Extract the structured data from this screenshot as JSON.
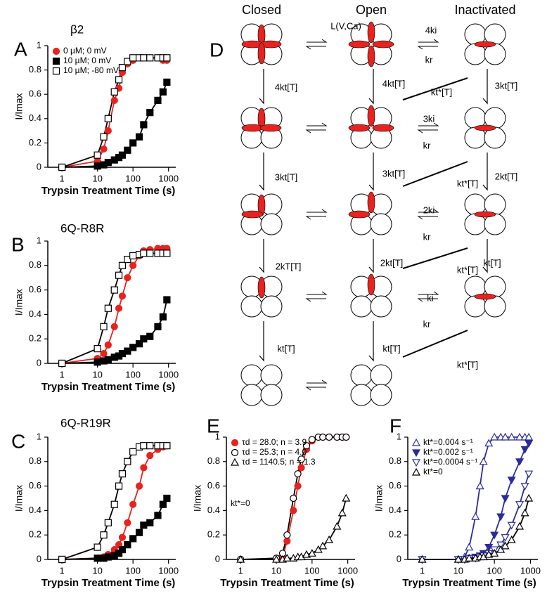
{
  "chart_data": [
    {
      "type": "line",
      "panel": "A",
      "title": "β2",
      "xlabel": "Trypsin Treatment Time (s)",
      "ylabel": "I/Imax",
      "x": [
        1,
        10,
        15,
        20,
        30,
        40,
        50,
        70,
        100,
        150,
        200,
        300,
        500,
        700,
        900
      ],
      "xlim": [
        0.4,
        1600
      ],
      "xticks": [
        1,
        10,
        100,
        1000
      ],
      "log_x": true,
      "ylim": [
        0,
        1
      ],
      "yticks": [
        0,
        0.2,
        0.4,
        0.6,
        0.8,
        1
      ],
      "legend": "upper left",
      "series": [
        {
          "name": "0 µM; 0 mV",
          "color": "#e8231f",
          "marker": "circle",
          "filled": true,
          "values": [
            0,
            0.05,
            0.15,
            0.3,
            0.55,
            0.65,
            0.78,
            0.85,
            0.88,
            0.9,
            0.9,
            0.9,
            0.9,
            0.88,
            0.88
          ]
        },
        {
          "name": "10 µM; 0 mV",
          "color": "#000000",
          "marker": "square",
          "filled": true,
          "values": [
            0,
            0.01,
            0.02,
            0.04,
            0.06,
            0.08,
            0.1,
            0.14,
            0.2,
            0.25,
            0.35,
            0.45,
            0.55,
            0.62,
            0.7
          ]
        },
        {
          "name": "10 µM; -80 mV",
          "color": "#000000",
          "marker": "square",
          "filled": false,
          "values": [
            0,
            0.1,
            0.25,
            0.4,
            0.62,
            0.72,
            0.82,
            0.87,
            0.9,
            0.9,
            0.9,
            0.9,
            0.9,
            0.9,
            0.9
          ]
        }
      ]
    },
    {
      "type": "line",
      "panel": "B",
      "title": "6Q-R8R",
      "xlabel": "Trypsin Treatment Time (s)",
      "ylabel": "I/Imax",
      "x": [
        1,
        10,
        15,
        20,
        30,
        40,
        50,
        70,
        100,
        150,
        200,
        300,
        500,
        700,
        900
      ],
      "xlim": [
        0.4,
        1600
      ],
      "xticks": [
        1,
        10,
        100,
        1000
      ],
      "log_x": true,
      "ylim": [
        0,
        1
      ],
      "yticks": [
        0,
        0.2,
        0.4,
        0.6,
        0.8,
        1
      ],
      "series": [
        {
          "color": "#e8231f",
          "marker": "circle",
          "filled": true,
          "values": [
            0,
            0.04,
            0.08,
            0.15,
            0.3,
            0.45,
            0.55,
            0.7,
            0.8,
            0.88,
            0.92,
            0.93,
            0.94,
            0.94,
            0.94
          ]
        },
        {
          "color": "#000000",
          "marker": "square",
          "filled": true,
          "values": [
            0,
            0.01,
            0.02,
            0.03,
            0.05,
            0.06,
            0.08,
            0.1,
            0.13,
            0.16,
            0.2,
            0.22,
            0.3,
            0.38,
            0.52
          ]
        },
        {
          "color": "#000000",
          "marker": "square",
          "filled": false,
          "values": [
            0,
            0.12,
            0.3,
            0.45,
            0.6,
            0.72,
            0.8,
            0.85,
            0.88,
            0.89,
            0.9,
            0.9,
            0.9,
            0.9,
            0.9
          ]
        }
      ]
    },
    {
      "type": "line",
      "panel": "C",
      "title": "6Q-R19R",
      "xlabel": "Trypsin Treatment Time (s)",
      "ylabel": "I/Imax",
      "x": [
        1,
        10,
        15,
        20,
        30,
        40,
        50,
        70,
        100,
        150,
        200,
        300,
        500,
        700,
        900
      ],
      "xlim": [
        0.4,
        1600
      ],
      "xticks": [
        1,
        10,
        100,
        1000
      ],
      "log_x": true,
      "ylim": [
        0,
        1
      ],
      "yticks": [
        0,
        0.2,
        0.4,
        0.6,
        0.8,
        1
      ],
      "series": [
        {
          "color": "#e8231f",
          "marker": "circle",
          "filled": true,
          "values": [
            0,
            0.01,
            0.02,
            0.04,
            0.08,
            0.12,
            0.18,
            0.3,
            0.45,
            0.6,
            0.75,
            0.85,
            0.9,
            0.92,
            0.93
          ]
        },
        {
          "color": "#000000",
          "marker": "square",
          "filled": true,
          "values": [
            0,
            0.01,
            0.01,
            0.02,
            0.03,
            0.05,
            0.08,
            0.12,
            0.17,
            0.22,
            0.28,
            0.3,
            0.36,
            0.45,
            0.5
          ]
        },
        {
          "color": "#000000",
          "marker": "square",
          "filled": false,
          "values": [
            0,
            0.1,
            0.2,
            0.3,
            0.45,
            0.6,
            0.7,
            0.8,
            0.88,
            0.92,
            0.93,
            0.93,
            0.93,
            0.93,
            0.93
          ]
        }
      ]
    },
    {
      "type": "line",
      "panel": "E",
      "xlabel": "Trypsin Treatment Time (s)",
      "ylabel": "I/Imax",
      "annotation": "kt*=0",
      "x": [
        1,
        10,
        15,
        20,
        30,
        40,
        50,
        70,
        100,
        150,
        200,
        300,
        500,
        700,
        900
      ],
      "xlim": [
        0.4,
        1600
      ],
      "xticks": [
        1,
        10,
        100,
        1000
      ],
      "log_x": true,
      "ylim": [
        0,
        1
      ],
      "yticks": [
        0,
        0.2,
        0.4,
        0.6,
        0.8,
        1
      ],
      "legend": "upper left",
      "series": [
        {
          "name": "τd = 28.0; n = 3.9",
          "color": "#e8231f",
          "marker": "circle",
          "filled": true,
          "values": [
            0,
            0,
            0.02,
            0.15,
            0.4,
            0.6,
            0.75,
            0.9,
            0.97,
            1,
            1,
            1,
            1,
            1,
            1
          ]
        },
        {
          "name": "τd = 25.3; n = 4.0",
          "color": "#000000",
          "marker": "circle",
          "filled": false,
          "values": [
            0,
            0.01,
            0.05,
            0.2,
            0.5,
            0.7,
            0.82,
            0.93,
            0.98,
            1,
            1,
            1,
            1,
            1,
            1
          ]
        },
        {
          "name": "τd = 1140.5; n = 1.3",
          "color": "#000000",
          "marker": "triangle",
          "filled": false,
          "values": [
            0,
            0,
            0,
            0.01,
            0.01,
            0.02,
            0.02,
            0.04,
            0.05,
            0.08,
            0.11,
            0.16,
            0.27,
            0.38,
            0.5
          ]
        }
      ]
    },
    {
      "type": "line",
      "panel": "F",
      "xlabel": "Trypsin Treatment Time (s)",
      "ylabel": "I/Imax",
      "x": [
        1,
        10,
        15,
        20,
        30,
        40,
        50,
        70,
        100,
        150,
        200,
        300,
        500,
        700,
        900
      ],
      "xlim": [
        0.4,
        1600
      ],
      "xticks": [
        1,
        10,
        100,
        1000
      ],
      "log_x": true,
      "ylim": [
        0,
        1
      ],
      "yticks": [
        0,
        0.2,
        0.4,
        0.6,
        0.8,
        1
      ],
      "legend": "upper left",
      "series": [
        {
          "name": "kt*=0.004 s⁻¹",
          "color": "#2b2b9c",
          "marker": "triangle",
          "filled": false,
          "values": [
            0,
            0,
            0.02,
            0.1,
            0.35,
            0.6,
            0.8,
            0.95,
            1,
            1,
            1,
            1,
            1,
            1,
            1
          ]
        },
        {
          "name": "kt*=0.002 s⁻¹",
          "color": "#2b2b9c",
          "marker": "triangle-down",
          "filled": true,
          "values": [
            0,
            0,
            0,
            0.01,
            0.02,
            0.03,
            0.05,
            0.1,
            0.2,
            0.35,
            0.5,
            0.65,
            0.8,
            0.9,
            0.95
          ]
        },
        {
          "name": "kt*=0.0004 s⁻¹",
          "color": "#2b2b9c",
          "marker": "triangle-down",
          "filled": false,
          "values": [
            0,
            0,
            0,
            0.01,
            0.01,
            0.02,
            0.03,
            0.05,
            0.08,
            0.12,
            0.18,
            0.28,
            0.45,
            0.6,
            0.7
          ]
        },
        {
          "name": "kt*=0",
          "color": "#000000",
          "marker": "triangle",
          "filled": false,
          "values": [
            0,
            0,
            0,
            0.01,
            0.01,
            0.02,
            0.02,
            0.04,
            0.05,
            0.08,
            0.11,
            0.16,
            0.27,
            0.38,
            0.5
          ]
        }
      ]
    }
  ],
  "diagram": {
    "panel": "D",
    "headers": [
      "Closed",
      "Open",
      "Inactivated"
    ],
    "labels": [
      "L(V,Ca)",
      "4ki",
      "kr",
      "4kt[T]",
      "4kt[T]",
      "kt*[T]",
      "3kt[T]",
      "3ki",
      "kr",
      "3kt[T]",
      "3kt[T]",
      "kt*[T]",
      "2kt[T]",
      "2ki",
      "kr",
      "2kT[T]",
      "2kt[T]",
      "kt*[T]",
      "kt[T]",
      "ki",
      "kr",
      "kt[T]",
      "kt[T]",
      "kt*[T]"
    ]
  }
}
